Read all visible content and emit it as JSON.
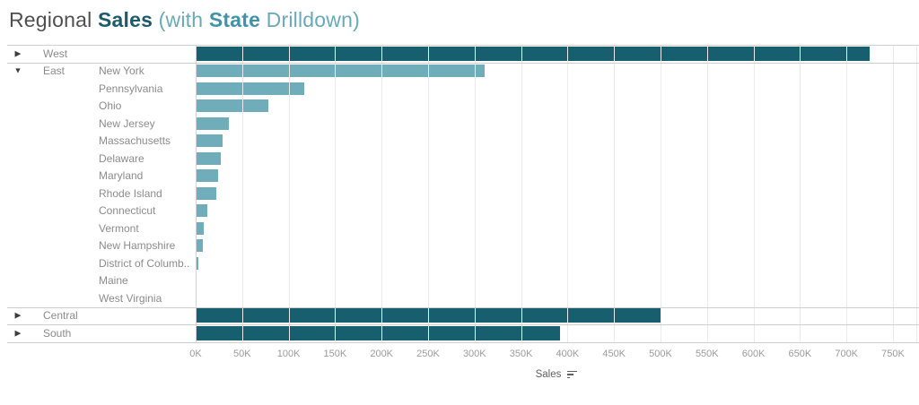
{
  "title": {
    "segments": [
      {
        "text": "Regional ",
        "bold": false,
        "color": "#4f4f4f"
      },
      {
        "text": "Sales",
        "bold": true,
        "color": "#1c5a6c"
      },
      {
        "text": " (with ",
        "bold": false,
        "color": "#6aa9b8"
      },
      {
        "text": "State",
        "bold": true,
        "color": "#4293a7"
      },
      {
        "text": " Drilldown)",
        "bold": false,
        "color": "#6aa9b8"
      }
    ]
  },
  "chart_data": {
    "type": "bar",
    "orientation": "horizontal",
    "title": "Regional Sales (with State Drilldown)",
    "axis": {
      "label": "Sales",
      "min": 0,
      "max": 750000,
      "step": 50000,
      "sorted": "descending",
      "tick_labels": [
        "0K",
        "50K",
        "100K",
        "150K",
        "200K",
        "250K",
        "300K",
        "350K",
        "400K",
        "450K",
        "500K",
        "550K",
        "600K",
        "650K",
        "700K",
        "750K"
      ]
    },
    "colors": {
      "region_bar": "#175e6e",
      "state_bar": "#6fadbb"
    },
    "groups": [
      {
        "region": "West",
        "expanded": false,
        "value": 725000
      },
      {
        "region": "East",
        "expanded": true,
        "states": [
          {
            "label": "New York",
            "value": 311000
          },
          {
            "label": "Pennsylvania",
            "value": 117000
          },
          {
            "label": "Ohio",
            "value": 78000
          },
          {
            "label": "New Jersey",
            "value": 36000
          },
          {
            "label": "Massachusetts",
            "value": 29000
          },
          {
            "label": "Delaware",
            "value": 27500
          },
          {
            "label": "Maryland",
            "value": 24000
          },
          {
            "label": "Rhode Island",
            "value": 22500
          },
          {
            "label": "Connecticut",
            "value": 13000
          },
          {
            "label": "Vermont",
            "value": 9000
          },
          {
            "label": "New Hampshire",
            "value": 7300
          },
          {
            "label": "District of Columb..",
            "value": 2900
          },
          {
            "label": "Maine",
            "value": 1300
          },
          {
            "label": "West Virginia",
            "value": 1200
          }
        ]
      },
      {
        "region": "Central",
        "expanded": false,
        "value": 501000
      },
      {
        "region": "South",
        "expanded": false,
        "value": 392000
      }
    ],
    "glyphs": {
      "collapsed_indicator": "▶",
      "expanded_indicator": "▼"
    }
  }
}
